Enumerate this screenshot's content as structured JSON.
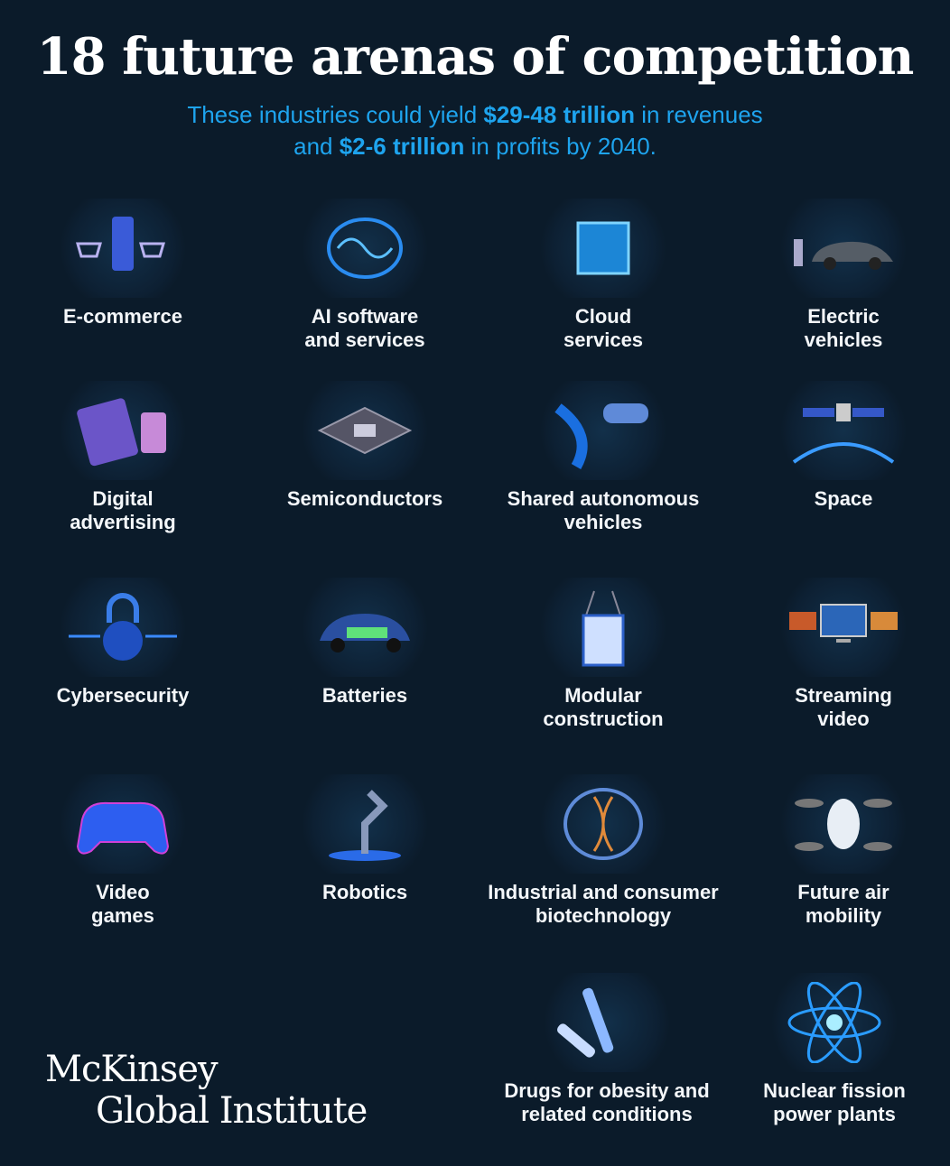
{
  "title": "18 future arenas of competition",
  "subtitle": {
    "p1": "These industries could yield ",
    "b1": "$29-48 trillion",
    "p2": " in revenues",
    "p3": "and ",
    "b2": "$2-6 trillion",
    "p4": " in profits by 2040."
  },
  "arenas": [
    {
      "label": "E-commerce",
      "icon": "shopping-cart-icon"
    },
    {
      "label": "AI software\nand services",
      "icon": "brain-icon"
    },
    {
      "label": "Cloud\nservices",
      "icon": "cloud-cube-icon"
    },
    {
      "label": "Electric\nvehicles",
      "icon": "electric-car-icon"
    },
    {
      "label": "Digital\nadvertising",
      "icon": "tablet-phone-icon"
    },
    {
      "label": "Semiconductors",
      "icon": "chip-icon"
    },
    {
      "label": "Shared autonomous\nvehicles",
      "icon": "autonomous-car-icon"
    },
    {
      "label": "Space",
      "icon": "satellite-icon"
    },
    {
      "label": "Cybersecurity",
      "icon": "padlock-icon"
    },
    {
      "label": "Batteries",
      "icon": "battery-car-icon"
    },
    {
      "label": "Modular\nconstruction",
      "icon": "container-module-icon"
    },
    {
      "label": "Streaming\nvideo",
      "icon": "screen-icon"
    },
    {
      "label": "Video\ngames",
      "icon": "gamepad-icon"
    },
    {
      "label": "Robotics",
      "icon": "robot-arm-icon"
    },
    {
      "label": "Industrial and consumer\nbiotechnology",
      "icon": "dna-icon"
    },
    {
      "label": "Future air\nmobility",
      "icon": "drone-icon"
    },
    {
      "label": "Drugs for obesity and\nrelated conditions",
      "icon": "injection-pen-icon"
    },
    {
      "label": "Nuclear fission\npower plants",
      "icon": "atom-icon"
    }
  ],
  "logo": {
    "line1": "McKinsey",
    "line2": "Global Institute"
  },
  "colors": {
    "background": "#0b1b2a",
    "accent": "#1ea4ee"
  }
}
